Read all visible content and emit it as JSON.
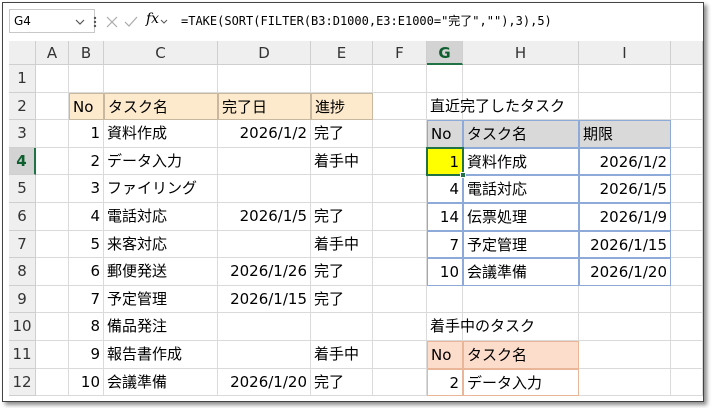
{
  "formula_bar": {
    "name_box": "G4",
    "function_label": "fx",
    "formula": "=TAKE(SORT(FILTER(B3:D1000,E3:E1000=\"完了\",\"\"),3),5)"
  },
  "sheet": {
    "columns": [
      "A",
      "B",
      "C",
      "D",
      "E",
      "F",
      "G",
      "H",
      "I"
    ],
    "row_numbers": [
      1,
      2,
      3,
      4,
      5,
      6,
      7,
      8,
      9,
      10,
      11,
      12
    ],
    "rows": [
      [
        null,
        null,
        null,
        null,
        null,
        null,
        null,
        null,
        null
      ],
      [
        null,
        "No",
        "タスク名",
        "完了日",
        "進捗",
        null,
        "直近完了したタスク",
        null,
        null
      ],
      [
        null,
        1,
        "資料作成",
        "2026/1/2",
        "完了",
        null,
        "No",
        "タスク名",
        "期限"
      ],
      [
        null,
        2,
        "データ入力",
        null,
        "着手中",
        null,
        1,
        "資料作成",
        "2026/1/2"
      ],
      [
        null,
        3,
        "ファイリング",
        null,
        null,
        null,
        4,
        "電話対応",
        "2026/1/5"
      ],
      [
        null,
        4,
        "電話対応",
        "2026/1/5",
        "完了",
        null,
        14,
        "伝票処理",
        "2026/1/9"
      ],
      [
        null,
        5,
        "来客対応",
        null,
        "着手中",
        null,
        7,
        "予定管理",
        "2026/1/15"
      ],
      [
        null,
        6,
        "郵便発送",
        "2026/1/26",
        "完了",
        null,
        10,
        "会議準備",
        "2026/1/20"
      ],
      [
        null,
        7,
        "予定管理",
        "2026/1/15",
        "完了",
        null,
        null,
        null,
        null
      ],
      [
        null,
        8,
        "備品発注",
        null,
        null,
        null,
        "着手中のタスク",
        null,
        null
      ],
      [
        null,
        9,
        "報告書作成",
        null,
        "着手中",
        null,
        "No",
        "タスク名",
        null
      ],
      [
        null,
        10,
        "会議準備",
        "2026/1/20",
        "完了",
        null,
        2,
        "データ入力",
        null
      ]
    ]
  }
}
